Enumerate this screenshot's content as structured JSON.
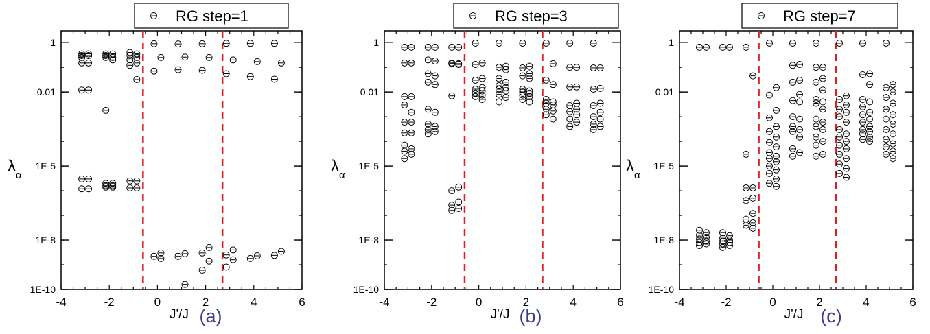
{
  "figure": {
    "panel_letters": [
      "(a)",
      "(b)",
      "(c)"
    ],
    "colors": {
      "points": "#000000",
      "axes": "#000000",
      "boundary": "#e02020",
      "letter": "#3a3a8c"
    }
  },
  "chart_data": [
    {
      "type": "scatter",
      "legend": "RG step=1",
      "legend_position": "top-right",
      "xlabel": "J'/J",
      "ylabel": "λα",
      "xlim": [
        -4,
        6
      ],
      "ylim": [
        1e-10,
        3
      ],
      "yscale": "log",
      "xticks": [
        "-4",
        "-2",
        "0",
        "2",
        "4",
        "6"
      ],
      "yticks": [
        "1",
        "0.01",
        "1E-5",
        "1E-8",
        "1E-10"
      ],
      "grid": false,
      "vlines": [
        -0.6,
        2.7
      ],
      "series": [
        {
          "x": -3,
          "y": [
            0.35,
            0.35,
            0.3,
            0.3,
            0.25,
            0.15,
            0.15,
            0.012,
            0.012,
            3e-06,
            3e-06,
            1.2e-06,
            1.2e-06
          ]
        },
        {
          "x": -2,
          "y": [
            0.35,
            0.35,
            0.3,
            0.25,
            0.25,
            0.2,
            0.0018,
            2e-06,
            2e-06,
            1.6e-06,
            1.6e-06,
            1.4e-06,
            1.4e-06
          ]
        },
        {
          "x": -1,
          "y": [
            0.4,
            0.35,
            0.3,
            0.25,
            0.2,
            0.15,
            0.12,
            0.032,
            2.5e-06,
            2.5e-06,
            1.3e-06,
            1.3e-06
          ]
        },
        {
          "x": 0,
          "y": [
            0.9,
            0.25,
            0.07,
            3e-09,
            2.2e-09,
            1.8e-09
          ]
        },
        {
          "x": 1,
          "y": [
            0.88,
            0.26,
            0.08,
            2.8e-09,
            2.2e-09,
            1.6e-10
          ]
        },
        {
          "x": 2,
          "y": [
            0.9,
            0.25,
            0.075,
            5e-09,
            3e-09,
            1.4e-09,
            6e-10
          ]
        },
        {
          "x": 3,
          "y": [
            0.93,
            0.2,
            0.055,
            4e-09,
            2.5e-09,
            1.6e-09,
            8e-10
          ]
        },
        {
          "x": 4,
          "y": [
            0.93,
            0.17,
            0.042,
            2.3e-09,
            1.8e-09
          ]
        },
        {
          "x": 5,
          "y": [
            0.93,
            0.15,
            0.033,
            3.5e-09,
            2.4e-09
          ]
        }
      ]
    },
    {
      "type": "scatter",
      "legend": "RG step=3",
      "legend_position": "top-right",
      "xlabel": "J'/J",
      "ylabel": "λα",
      "xlim": [
        -4,
        6
      ],
      "ylim": [
        1e-10,
        3
      ],
      "yscale": "log",
      "xticks": [
        "-4",
        "-2",
        "0",
        "2",
        "4",
        "6"
      ],
      "yticks": [
        "1",
        "0.01",
        "1E-5",
        "1E-8",
        "1E-10"
      ],
      "grid": false,
      "vlines": [
        -0.6,
        2.7
      ],
      "series": [
        {
          "x": -3,
          "y": [
            0.65,
            0.65,
            0.15,
            0.15,
            0.0065,
            0.0065,
            0.003,
            0.0015,
            0.0006,
            0.0006,
            0.00022,
            0.00022,
            7e-05,
            5e-05,
            4e-05,
            3e-05,
            2e-05
          ]
        },
        {
          "x": -2,
          "y": [
            0.65,
            0.65,
            0.2,
            0.18,
            0.055,
            0.045,
            0.025,
            0.02,
            0.002,
            0.0015,
            0.0005,
            0.0004,
            0.0003,
            0.00025,
            0.0002
          ]
        },
        {
          "x": -1,
          "y": [
            0.65,
            0.65,
            0.15,
            0.14,
            0.14,
            0.13,
            0.007,
            1.4e-06,
            1e-06,
            3.5e-07,
            2.6e-07,
            1.9e-07,
            1.6e-07
          ]
        },
        {
          "x": 0,
          "y": [
            0.95,
            0.15,
            0.13,
            0.035,
            0.03,
            0.015,
            0.013,
            0.011,
            0.009,
            0.0075,
            0.0065,
            0.005
          ]
        },
        {
          "x": 1,
          "y": [
            0.95,
            0.11,
            0.1,
            0.08,
            0.035,
            0.025,
            0.018,
            0.015,
            0.013,
            0.011,
            0.008,
            0.006,
            0.004
          ]
        },
        {
          "x": 2,
          "y": [
            0.95,
            0.11,
            0.095,
            0.055,
            0.045,
            0.035,
            0.013,
            0.011,
            0.01,
            0.009,
            0.0075,
            0.0065,
            0.005,
            0.004
          ]
        },
        {
          "x": 3,
          "y": [
            0.95,
            0.14,
            0.03,
            0.02,
            0.005,
            0.004,
            0.0035,
            0.003,
            0.002,
            0.0017,
            0.0012,
            0.0008
          ]
        },
        {
          "x": 4,
          "y": [
            0.95,
            0.1,
            0.1,
            0.016,
            0.016,
            0.0035,
            0.0028,
            0.002,
            0.0016,
            0.0012,
            0.0008,
            0.0006,
            0.0004
          ]
        },
        {
          "x": 5,
          "y": [
            0.95,
            0.095,
            0.095,
            0.014,
            0.013,
            0.0035,
            0.0028,
            0.0015,
            0.001,
            0.0008,
            0.0005,
            0.0004,
            0.0003
          ]
        }
      ]
    },
    {
      "type": "scatter",
      "legend": "RG step=7",
      "legend_position": "top-right",
      "xlabel": "J'/J",
      "ylabel": "λα",
      "xlim": [
        -4,
        6
      ],
      "ylim": [
        1e-10,
        3
      ],
      "yscale": "log",
      "xticks": [
        "-4",
        "-2",
        "0",
        "2",
        "4",
        "6"
      ],
      "yticks": [
        "1",
        "0.01",
        "1E-5",
        "1E-8",
        "1E-10"
      ],
      "grid": false,
      "vlines": [
        -0.6,
        2.7
      ],
      "series": [
        {
          "x": -3,
          "y": [
            0.65,
            0.65,
            2.5e-08,
            2e-08,
            1.6e-08,
            1.3e-08,
            1.1e-08,
            9e-09,
            8e-09,
            7e-09,
            6e-09
          ]
        },
        {
          "x": -2,
          "y": [
            0.65,
            0.65,
            2e-08,
            1.5e-08,
            1.2e-08,
            1e-08,
            9e-09,
            8e-09,
            7e-09,
            6e-09,
            5e-09
          ]
        },
        {
          "x": -1,
          "y": [
            0.65,
            0.045,
            3e-05,
            1.3e-06,
            1.3e-06,
            5e-07,
            4e-07,
            1.2e-07,
            7e-08,
            5e-08,
            4e-08,
            3e-08
          ]
        },
        {
          "x": 0,
          "y": [
            0.95,
            0.015,
            0.0075,
            0.0018,
            0.0009,
            0.0004,
            0.00025,
            0.00015,
            9e-05,
            6e-05,
            3.5e-05,
            2.5e-05,
            2e-05,
            1.5e-05,
            1e-05,
            7e-06,
            5e-06,
            3e-06,
            2e-06,
            1.5e-06
          ]
        },
        {
          "x": 1,
          "y": [
            0.95,
            0.13,
            0.12,
            0.03,
            0.025,
            0.008,
            0.0045,
            0.004,
            0.001,
            0.0008,
            0.0004,
            0.0003,
            0.00025,
            0.00015,
            5e-05,
            3.5e-05,
            2.5e-05
          ]
        },
        {
          "x": 2,
          "y": [
            0.95,
            0.1,
            0.1,
            0.035,
            0.025,
            0.012,
            0.005,
            0.004,
            0.0035,
            0.002,
            0.0008,
            0.0006,
            0.0004,
            0.0003,
            0.00015,
            0.0001,
            7e-05,
            3e-05,
            2.5e-05
          ]
        },
        {
          "x": 3,
          "y": [
            0.95,
            0.007,
            0.005,
            0.003,
            0.002,
            0.0015,
            0.001,
            0.0006,
            0.0003,
            0.0002,
            0.00015,
            0.0001,
            7e-05,
            5e-05,
            3e-05,
            2e-05,
            1.2e-05,
            8e-06,
            5e-06,
            3.5e-06
          ]
        },
        {
          "x": 4,
          "y": [
            0.95,
            0.055,
            0.05,
            0.02,
            0.005,
            0.004,
            0.0025,
            0.0015,
            0.0012,
            0.0008,
            0.0006,
            0.0004,
            0.0003,
            0.00025,
            0.0002,
            0.00015,
            0.00012,
            0.0001
          ]
        },
        {
          "x": 5,
          "y": [
            0.95,
            0.02,
            0.015,
            0.01,
            0.006,
            0.0035,
            0.002,
            0.0012,
            0.0008,
            0.0005,
            0.0003,
            0.0002,
            0.00012,
            8e-05,
            6e-05,
            4e-05,
            3e-05,
            2e-05
          ]
        }
      ]
    }
  ]
}
